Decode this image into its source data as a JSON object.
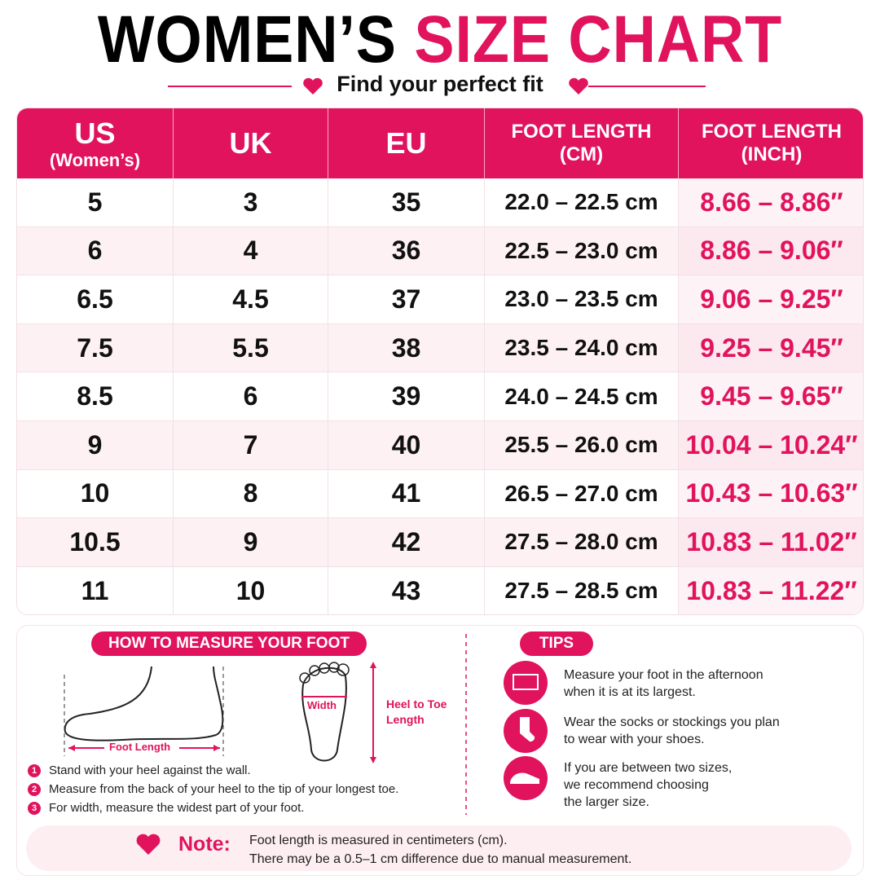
{
  "header": {
    "title_dark": "WOMEN’S",
    "title_accent": "SIZE CHART",
    "subtitle": "Find your perfect fit"
  },
  "table": {
    "columns": [
      [
        "US",
        "(Women’s)"
      ],
      [
        "UK"
      ],
      [
        "EU"
      ],
      [
        "FOOT LENGTH",
        "(CM)"
      ],
      [
        "FOOT LENGTH",
        "(INCH)"
      ]
    ],
    "rows": [
      [
        "5",
        "3",
        "35",
        "22.0 – 22.5 cm",
        "8.66 – 8.86″"
      ],
      [
        "6",
        "4",
        "36",
        "22.5 – 23.0 cm",
        "8.86 – 9.06″"
      ],
      [
        "6.5",
        "4.5",
        "37",
        "23.0 – 23.5 cm",
        "9.06 – 9.25″"
      ],
      [
        "7.5",
        "5.5",
        "38",
        "23.5 – 24.0 cm",
        "9.25 – 9.45″"
      ],
      [
        "8.5",
        "6",
        "39",
        "24.0 – 24.5 cm",
        "9.45 – 9.65″"
      ],
      [
        "9",
        "7",
        "40",
        "25.5 – 26.0 cm",
        "10.04 – 10.24″"
      ],
      [
        "10",
        "8",
        "41",
        "26.5 – 27.0 cm",
        "10.43 – 10.63″"
      ],
      [
        "10.5",
        "9",
        "42",
        "27.5 – 28.0 cm",
        "10.83 – 11.02″"
      ],
      [
        "11",
        "10",
        "43",
        "27.5 – 28.5 cm",
        "10.83 – 11.22″"
      ]
    ]
  },
  "measure": {
    "title": "HOW TO MEASURE YOUR FOOT",
    "foot_length": "Foot Length",
    "width": "Width",
    "heel_to_toe": [
      "Heel to Toe",
      "Length"
    ],
    "steps": [
      {
        "number": "1",
        "text": "Stand with your heel against the wall."
      },
      {
        "number": "2",
        "text": "Measure from the back of your heel to the tip of your longest toe."
      },
      {
        "number": "3",
        "text": "For width, measure the widest part of your foot."
      }
    ]
  },
  "tips": {
    "title": "TIPS",
    "items": [
      [
        "Measure your foot in the afternoon",
        "when it is at its largest."
      ],
      [
        "Wear the socks or stockings you plan",
        "to wear with your shoes."
      ],
      [
        "If you are between two sizes,",
        "we recommend choosing",
        "the larger size."
      ]
    ]
  },
  "note": {
    "label": "Note:",
    "lines": [
      "Foot length is measured in centimeters (cm).",
      "There may be a 0.5–1 cm difference due to manual measurement."
    ]
  }
}
